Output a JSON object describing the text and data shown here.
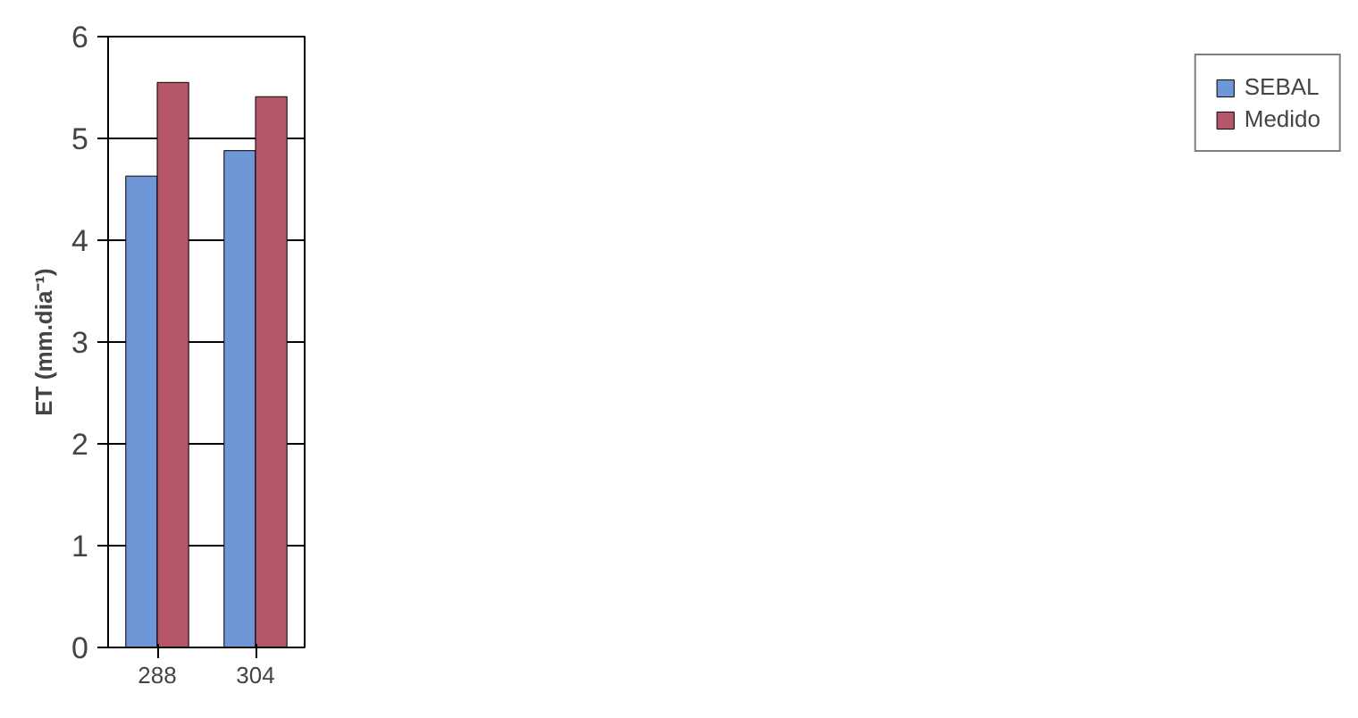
{
  "chart_data": {
    "type": "bar",
    "ylabel": "ET (mm.dia⁻¹)",
    "categories": [
      "288",
      "304"
    ],
    "series": [
      {
        "name": "SEBAL",
        "color": "#6f96d6",
        "values": [
          4.63,
          4.88
        ]
      },
      {
        "name": "Medido",
        "color": "#b5566b",
        "values": [
          5.55,
          5.41
        ]
      }
    ],
    "ylim": [
      0,
      6
    ],
    "yticks": [
      0,
      1,
      2,
      3,
      4,
      5,
      6
    ],
    "grid": "y",
    "legend": "right"
  }
}
